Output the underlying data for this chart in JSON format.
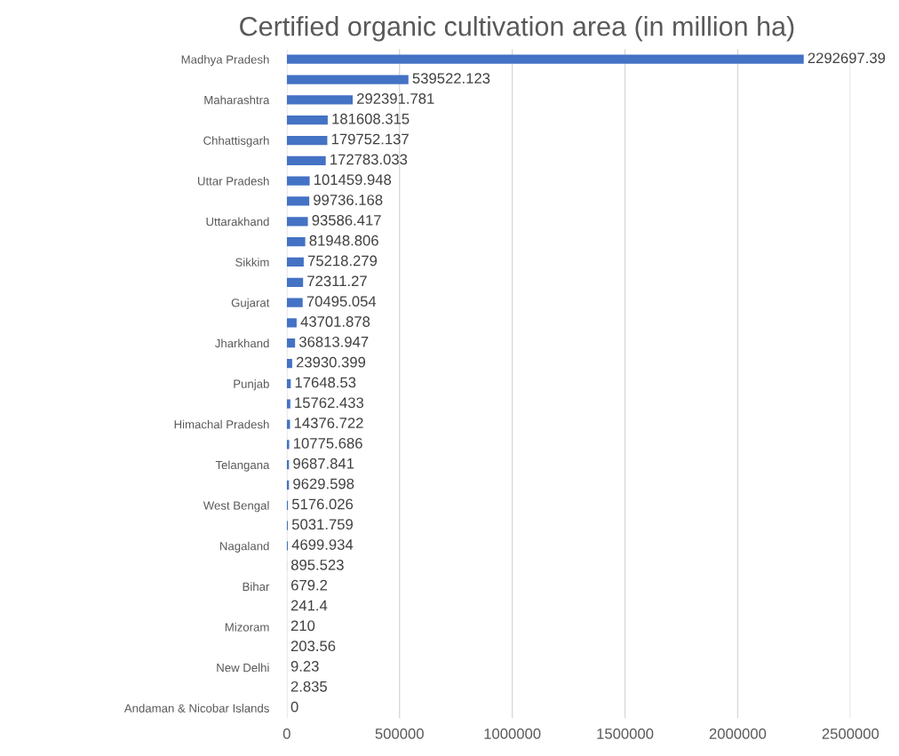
{
  "chart_data": {
    "type": "bar",
    "orientation": "horizontal",
    "title": "Certified organic cultivation area (in million ha)",
    "categories": [
      "Madhya Pradesh",
      null,
      "Maharashtra",
      null,
      "Chhattisgarh",
      null,
      "Uttar Pradesh",
      null,
      "Uttarakhand",
      null,
      "Sikkim",
      null,
      "Gujarat",
      null,
      "Jharkhand",
      null,
      "Punjab",
      null,
      "Himachal Pradesh",
      null,
      "Telangana",
      null,
      "West Bengal",
      null,
      "Nagaland",
      null,
      "Bihar",
      null,
      "Mizoram",
      null,
      "New Delhi",
      null,
      "Andaman & Nicobar Islands"
    ],
    "values": [
      2292697.39,
      539522.123,
      292391.781,
      181608.315,
      179752.137,
      172783.033,
      101459.948,
      99736.168,
      93586.417,
      81948.806,
      75218.279,
      72311.27,
      70495.054,
      43701.878,
      36813.947,
      23930.399,
      17648.53,
      15762.433,
      14376.722,
      10775.686,
      9687.841,
      9629.598,
      5176.026,
      5031.759,
      4699.934,
      895.523,
      679.2,
      241.4,
      210,
      203.56,
      9.23,
      2.835,
      0
    ],
    "color": "#4472c4",
    "xlim": [
      0,
      2500000
    ],
    "xticks": [
      0,
      500000,
      1000000,
      1500000,
      2000000,
      2500000
    ],
    "grid": "x",
    "data_labels": true
  }
}
